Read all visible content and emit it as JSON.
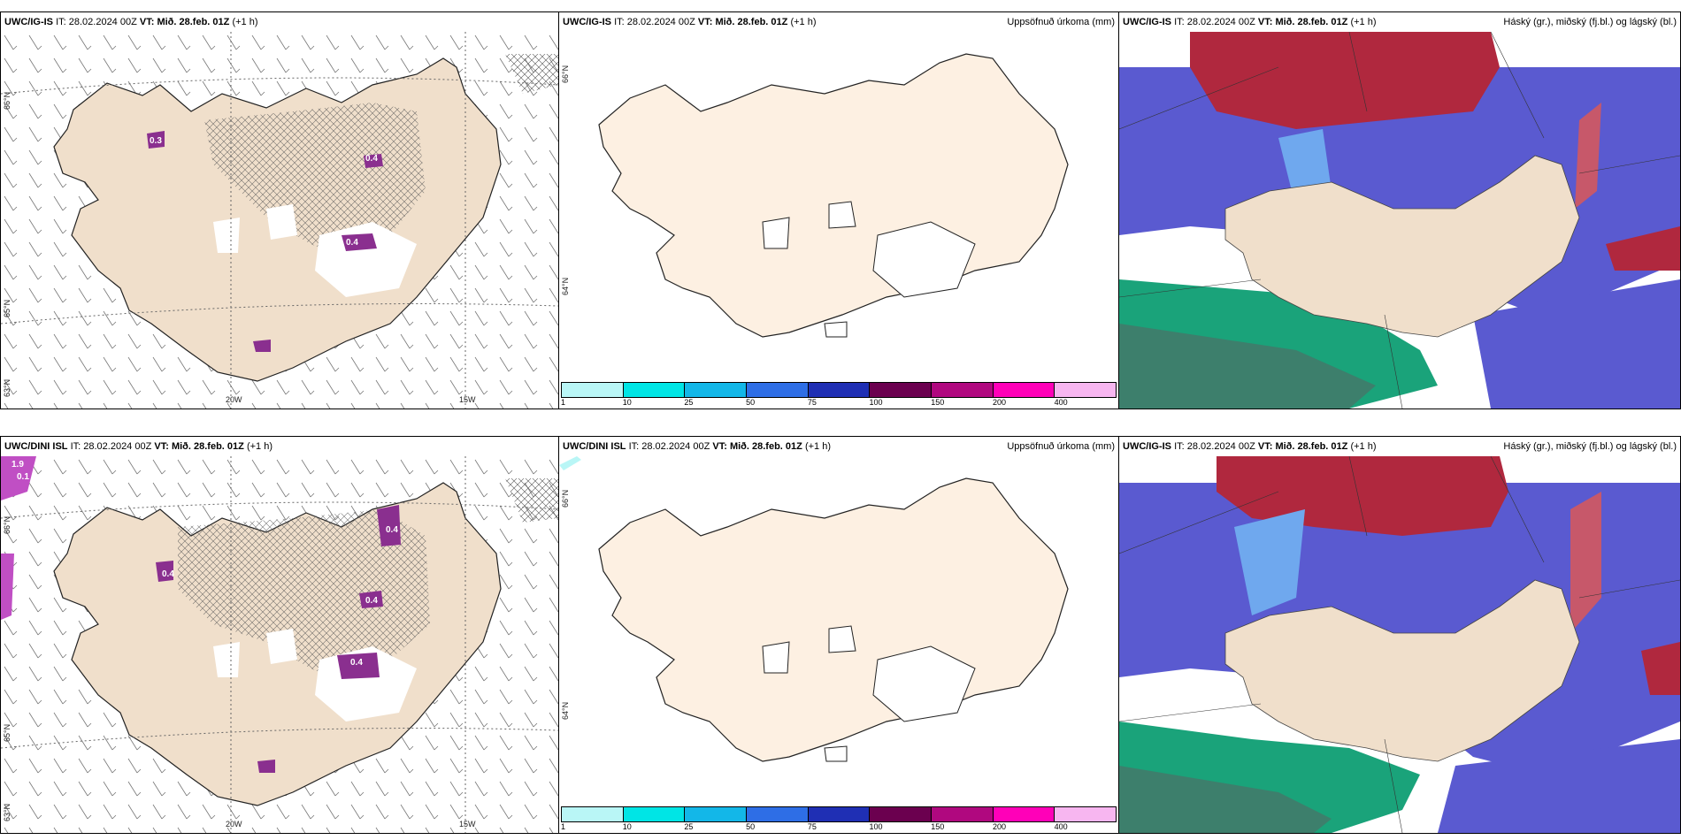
{
  "rows": [
    {
      "precip_panel": {
        "model": "UWC/IG-IS",
        "it_label": "IT:",
        "it_value": "28.02.2024 00Z",
        "vt_label": "VT:",
        "vt_value": "Mið. 28.feb. 01Z",
        "lead": "(+1 h)",
        "lat_labels": [
          "66°N",
          "65°N",
          "63°N"
        ],
        "lon_labels": [
          "20W",
          "15W"
        ],
        "value_labels": [
          "0.3",
          "0.4",
          "0.4"
        ]
      },
      "accum_panel": {
        "model": "UWC/IG-IS",
        "it_label": "IT:",
        "it_value": "28.02.2024 00Z",
        "vt_label": "VT:",
        "vt_value": "Mið. 28.feb. 01Z",
        "lead": "(+1 h)",
        "right_title": "Uppsöfnuð úrkoma (mm)",
        "lat_labels": [
          "66°N",
          "64°N"
        ]
      },
      "cloud_panel": {
        "model": "UWC/IG-IS",
        "it_label": "IT:",
        "it_value": "28.02.2024 00Z",
        "vt_label": "VT:",
        "vt_value": "Mið. 28.feb. 01Z",
        "lead": "(+1 h)",
        "right_title": "Háský (gr.), miðský (fj.bl.) og lágský (bl.)"
      }
    },
    {
      "precip_panel": {
        "model": "UWC/DINI ISL",
        "it_label": "IT:",
        "it_value": "28.02.2024 00Z",
        "vt_label": "VT:",
        "vt_value": "Mið. 28.feb. 01Z",
        "lead": "(+1 h)",
        "lat_labels": [
          "66°N",
          "65°N",
          "63°N"
        ],
        "lon_labels": [
          "20W",
          "15W"
        ],
        "value_labels": [
          "1.9",
          "0.1",
          "0.4",
          "0.4",
          "0.4",
          "0.4"
        ]
      },
      "accum_panel": {
        "model": "UWC/DINI ISL",
        "it_label": "IT:",
        "it_value": "28.02.2024 00Z",
        "vt_label": "VT:",
        "vt_value": "Mið. 28.feb. 01Z",
        "lead": "(+1 h)",
        "right_title": "Uppsöfnuð úrkoma (mm)",
        "lat_labels": [
          "66°N",
          "64°N"
        ]
      },
      "cloud_panel": {
        "model": "UWC/IG-IS",
        "it_label": "IT:",
        "it_value": "28.02.2024 00Z",
        "vt_label": "VT:",
        "vt_value": "Mið. 28.feb. 01Z",
        "lead": "(+1 h)",
        "right_title": "Háský (gr.), miðský (fj.bl.) og lágský (bl.)"
      }
    }
  ],
  "colorbar": {
    "labels": [
      "1",
      "10",
      "25",
      "50",
      "75",
      "100",
      "150",
      "200",
      "400"
    ],
    "colors": [
      "#b9f6f6",
      "#00e5e5",
      "#13b7e8",
      "#2e6ee6",
      "#1f2fb4",
      "#6b004f",
      "#b0087f",
      "#ff00b8",
      "#f7b6f0"
    ]
  },
  "colors": {
    "land": "#f0dfcb",
    "land_accum": "#fdf0e2",
    "precip": "#8a2f8f",
    "low_cloud": "#5a5ad0",
    "mid_cloud": "#1aa37a",
    "high_cloud": "#b0283e"
  }
}
